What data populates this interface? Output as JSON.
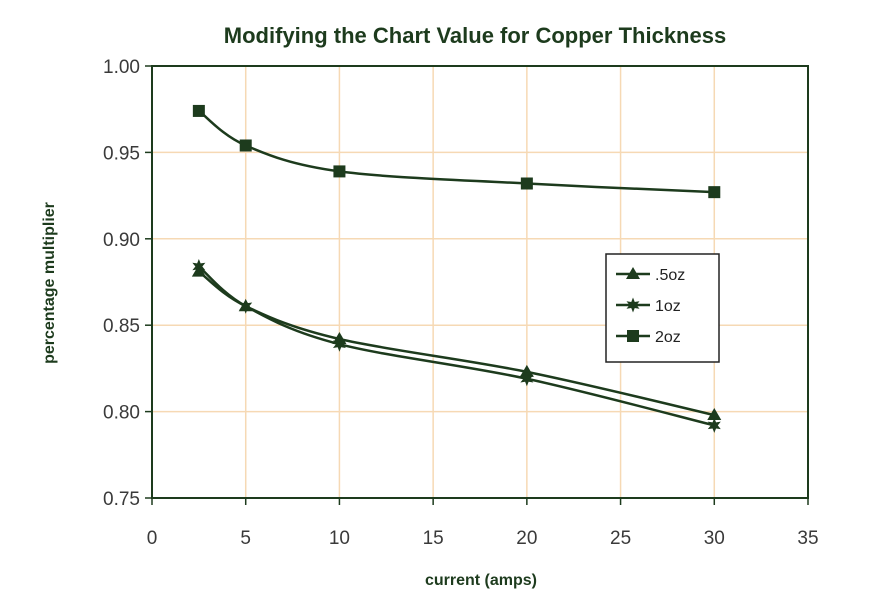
{
  "chart_data": {
    "type": "line",
    "title": "Modifying the Chart Value for Copper Thickness",
    "xlabel": "current (amps)",
    "ylabel": "percentage multiplier",
    "xlim": [
      0,
      35
    ],
    "ylim": [
      0.75,
      1.0
    ],
    "xticks": [
      "0",
      "5",
      "10",
      "15",
      "20",
      "25",
      "30",
      "35"
    ],
    "yticks": [
      "1.00",
      "0.95",
      "0.90",
      "0.85",
      "0.80",
      "0.75"
    ],
    "grid": true,
    "legend_position": "right",
    "series": [
      {
        "name": ".5oz",
        "marker": "triangle",
        "x": [
          2.5,
          5,
          10,
          20,
          30
        ],
        "y": [
          0.881,
          0.861,
          0.842,
          0.823,
          0.798
        ]
      },
      {
        "name": "1oz",
        "marker": "star",
        "x": [
          2.5,
          5,
          10,
          20,
          30
        ],
        "y": [
          0.884,
          0.861,
          0.839,
          0.819,
          0.792
        ]
      },
      {
        "name": "2oz",
        "marker": "square",
        "x": [
          2.5,
          5,
          10,
          20,
          30
        ],
        "y": [
          0.974,
          0.954,
          0.939,
          0.932,
          0.927
        ]
      }
    ],
    "colors": {
      "line": "#1d3b1d",
      "grid": "#f6d9b4",
      "frame": "#1d3b1d"
    }
  }
}
